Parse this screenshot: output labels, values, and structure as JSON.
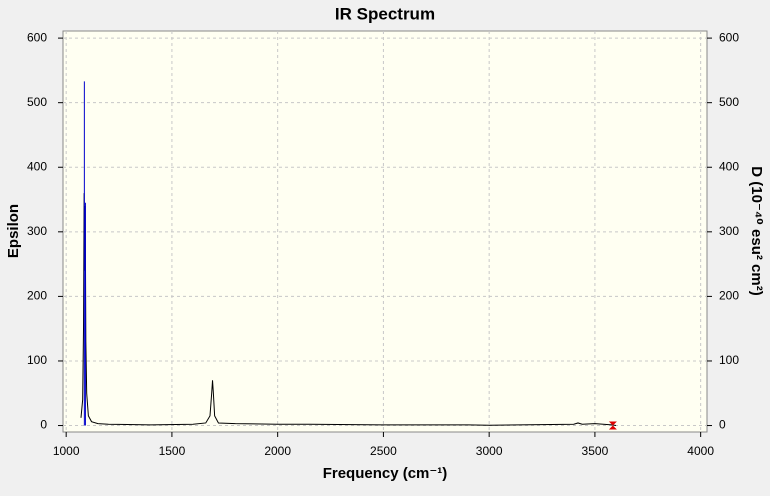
{
  "chart_data": {
    "type": "line",
    "title": "IR Spectrum",
    "xlabel": "Frequency (cm⁻¹)",
    "ylabel": "Epsilon",
    "y2label": "D (10⁻⁴⁰ esu² cm²)",
    "xlim": [
      985,
      4030
    ],
    "ylim": [
      -10,
      611
    ],
    "y2lim": [
      -10,
      611
    ],
    "xticks": [
      1000,
      1500,
      2000,
      2500,
      3000,
      3500,
      4000
    ],
    "yticks": [
      0,
      100,
      200,
      300,
      400,
      500,
      600
    ],
    "y2ticks": [
      0,
      100,
      200,
      300,
      400,
      500,
      600
    ],
    "grid": true,
    "background": "#fffff2",
    "series": [
      {
        "color": "#000000",
        "style": "line",
        "x": [
          1070,
          1078,
          1082,
          1085,
          1087,
          1090,
          1093,
          1097,
          1105,
          1120,
          1150,
          1200,
          1400,
          1600,
          1660,
          1680,
          1688,
          1692,
          1696,
          1702,
          1720,
          1800,
          2000,
          2150,
          2500,
          2900,
          3000,
          3400,
          3420,
          3440,
          3500,
          3580,
          3600
        ],
        "values": [
          12,
          40,
          150,
          360,
          240,
          340,
          130,
          50,
          15,
          6,
          3,
          2,
          1,
          2,
          4,
          15,
          50,
          70,
          50,
          15,
          4,
          3,
          2,
          2,
          1,
          1,
          0.5,
          2,
          4,
          2,
          3,
          1,
          0
        ]
      },
      {
        "color": "#0000cc",
        "style": "stick",
        "axis": "y2",
        "x": [
          1086,
          1091
        ],
        "values": [
          533,
          345
        ]
      },
      {
        "color": "#dd0000",
        "style": "marker",
        "x": [
          3585
        ],
        "values": [
          0
        ]
      }
    ]
  }
}
